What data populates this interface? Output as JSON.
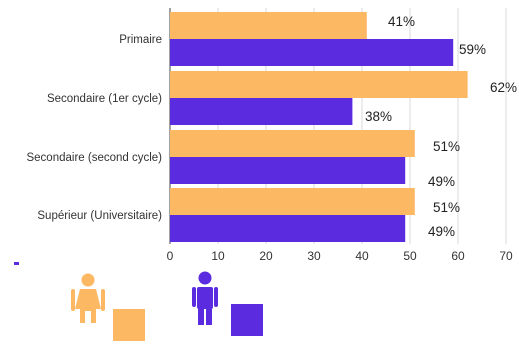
{
  "colors": {
    "women": "#FDB863",
    "men": "#5B2BE0",
    "axis": "#444444",
    "grid": "#d9d9d9"
  },
  "legend": [
    {
      "key": "women",
      "icon": "woman-icon"
    },
    {
      "key": "men",
      "icon": "man-icon"
    }
  ],
  "chart_data": {
    "type": "bar",
    "orientation": "horizontal",
    "categories": [
      "Primaire",
      "Secondaire (1er cycle)",
      "Secondaire (second cycle)",
      "Supérieur (Universitaire)"
    ],
    "series": [
      {
        "key": "women",
        "values": [
          41,
          62,
          51,
          51
        ],
        "labels": [
          "41%",
          "62%",
          "51%",
          "51%"
        ]
      },
      {
        "key": "men",
        "values": [
          59,
          38,
          49,
          49
        ],
        "labels": [
          "59%",
          "38%",
          "49%",
          "49%"
        ]
      }
    ],
    "xlim": [
      0,
      70
    ],
    "xticks": [
      "0",
      "10",
      "20",
      "30",
      "40",
      "50",
      "60",
      "70"
    ],
    "grid": true
  }
}
